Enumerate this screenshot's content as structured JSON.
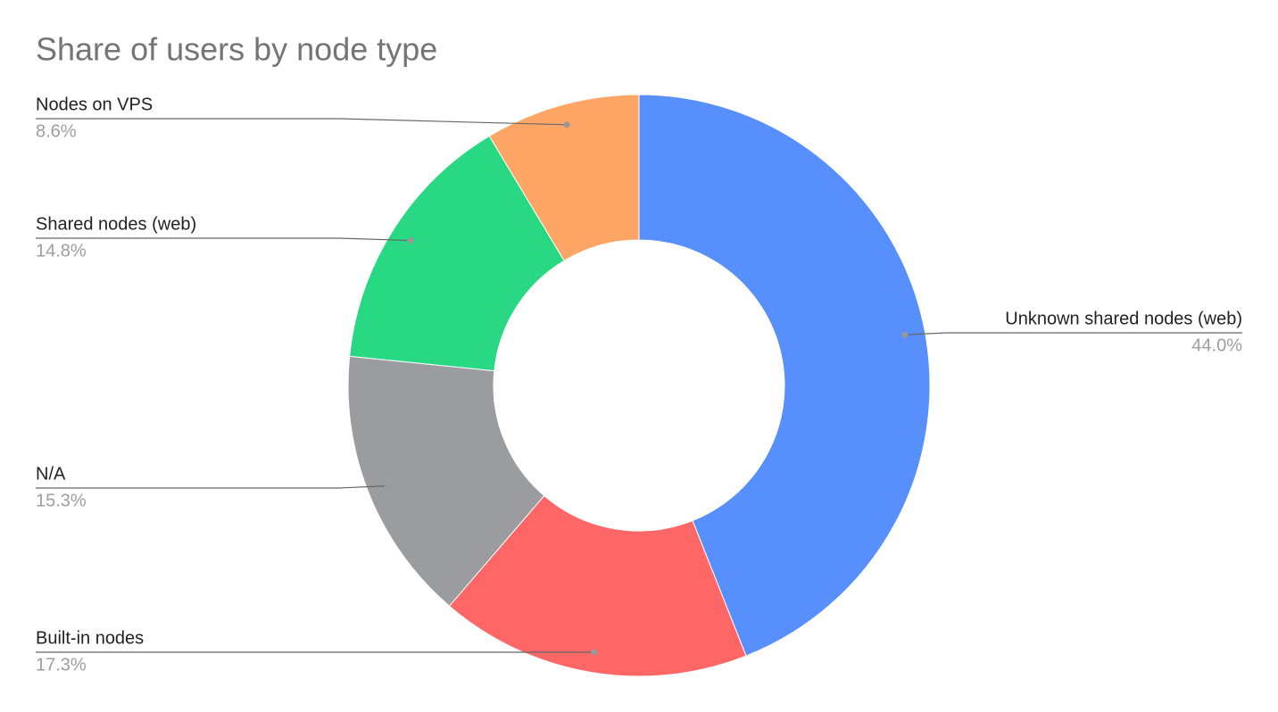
{
  "chart_data": {
    "type": "donut",
    "title": "Share of users by node type",
    "categories": [
      "Unknown shared nodes (web)",
      "Built-in nodes",
      "N/A",
      "Shared nodes (web)",
      "Nodes on VPS"
    ],
    "values": [
      44.0,
      17.3,
      15.3,
      14.8,
      8.6
    ],
    "value_labels": [
      "44.0%",
      "17.3%",
      "15.3%",
      "14.8%",
      "8.6%"
    ],
    "colors": [
      "#578ffc",
      "#ff6666",
      "#9a9ca0",
      "#28d882",
      "#ffa566"
    ]
  }
}
